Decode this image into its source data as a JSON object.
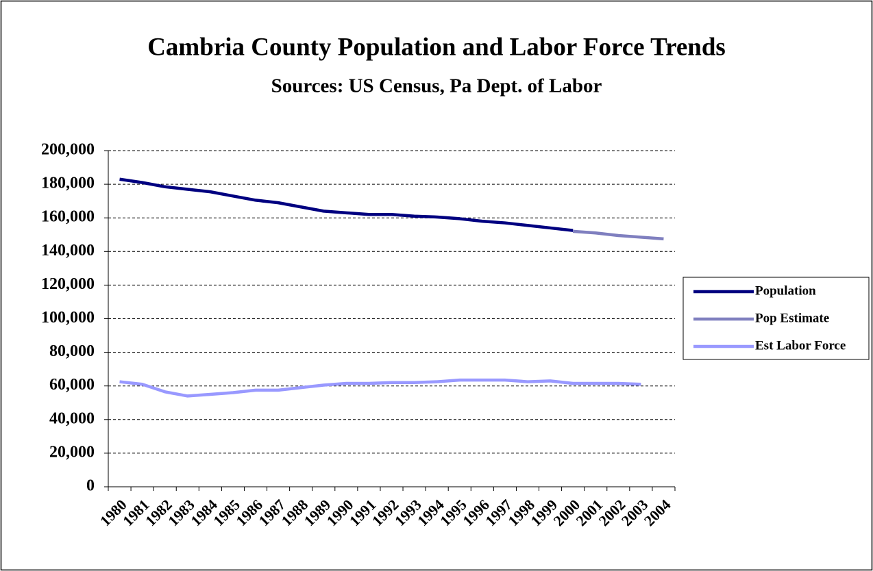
{
  "chart_data": {
    "type": "line",
    "title": "Cambria County Population and Labor Force Trends",
    "subtitle": "Sources:  US Census, Pa Dept. of Labor",
    "categories": [
      "1980",
      "1981",
      "1982",
      "1983",
      "1984",
      "1985",
      "1986",
      "1987",
      "1988",
      "1989",
      "1990",
      "1991",
      "1992",
      "1993",
      "1994",
      "1995",
      "1996",
      "1997",
      "1998",
      "1999",
      "2000",
      "2001",
      "2002",
      "2003",
      "2004"
    ],
    "series": [
      {
        "name": "Population",
        "color": "#000080",
        "values": [
          183000,
          181000,
          178500,
          177000,
          175500,
          173000,
          170500,
          169000,
          166500,
          164000,
          163000,
          162000,
          162000,
          161000,
          160500,
          159500,
          158000,
          157000,
          155500,
          154000,
          152500,
          null,
          null,
          null,
          null
        ]
      },
      {
        "name": "Pop Estimate",
        "color": "#7f7fbf",
        "values": [
          null,
          null,
          null,
          null,
          null,
          null,
          null,
          null,
          null,
          null,
          null,
          null,
          null,
          null,
          null,
          null,
          null,
          null,
          null,
          null,
          152000,
          151000,
          149500,
          148500,
          147500
        ]
      },
      {
        "name": "Est Labor Force",
        "color": "#9999ff",
        "values": [
          62500,
          61000,
          56500,
          54000,
          55000,
          56000,
          57500,
          57500,
          59000,
          60500,
          61500,
          61500,
          62000,
          62000,
          62500,
          63500,
          63500,
          63500,
          62500,
          63000,
          61500,
          61500,
          61500,
          61000,
          null
        ]
      }
    ],
    "ylim": [
      0,
      200000
    ],
    "yticks": [
      0,
      {
        "value": 20000,
        "label": "20,000"
      },
      {
        "value": 40000,
        "label": "40,000"
      },
      {
        "value": 60000,
        "label": "60,000"
      },
      {
        "value": 80000,
        "label": "80,000"
      },
      {
        "value": 100000,
        "label": "100,000"
      },
      {
        "value": 120000,
        "label": "120,000"
      },
      {
        "value": 140000,
        "label": "140,000"
      },
      {
        "value": 160000,
        "label": "160,000"
      },
      {
        "value": 180000,
        "label": "180,000"
      },
      {
        "value": 200000,
        "label": "200,000"
      }
    ],
    "grid": true,
    "legend": "right"
  }
}
